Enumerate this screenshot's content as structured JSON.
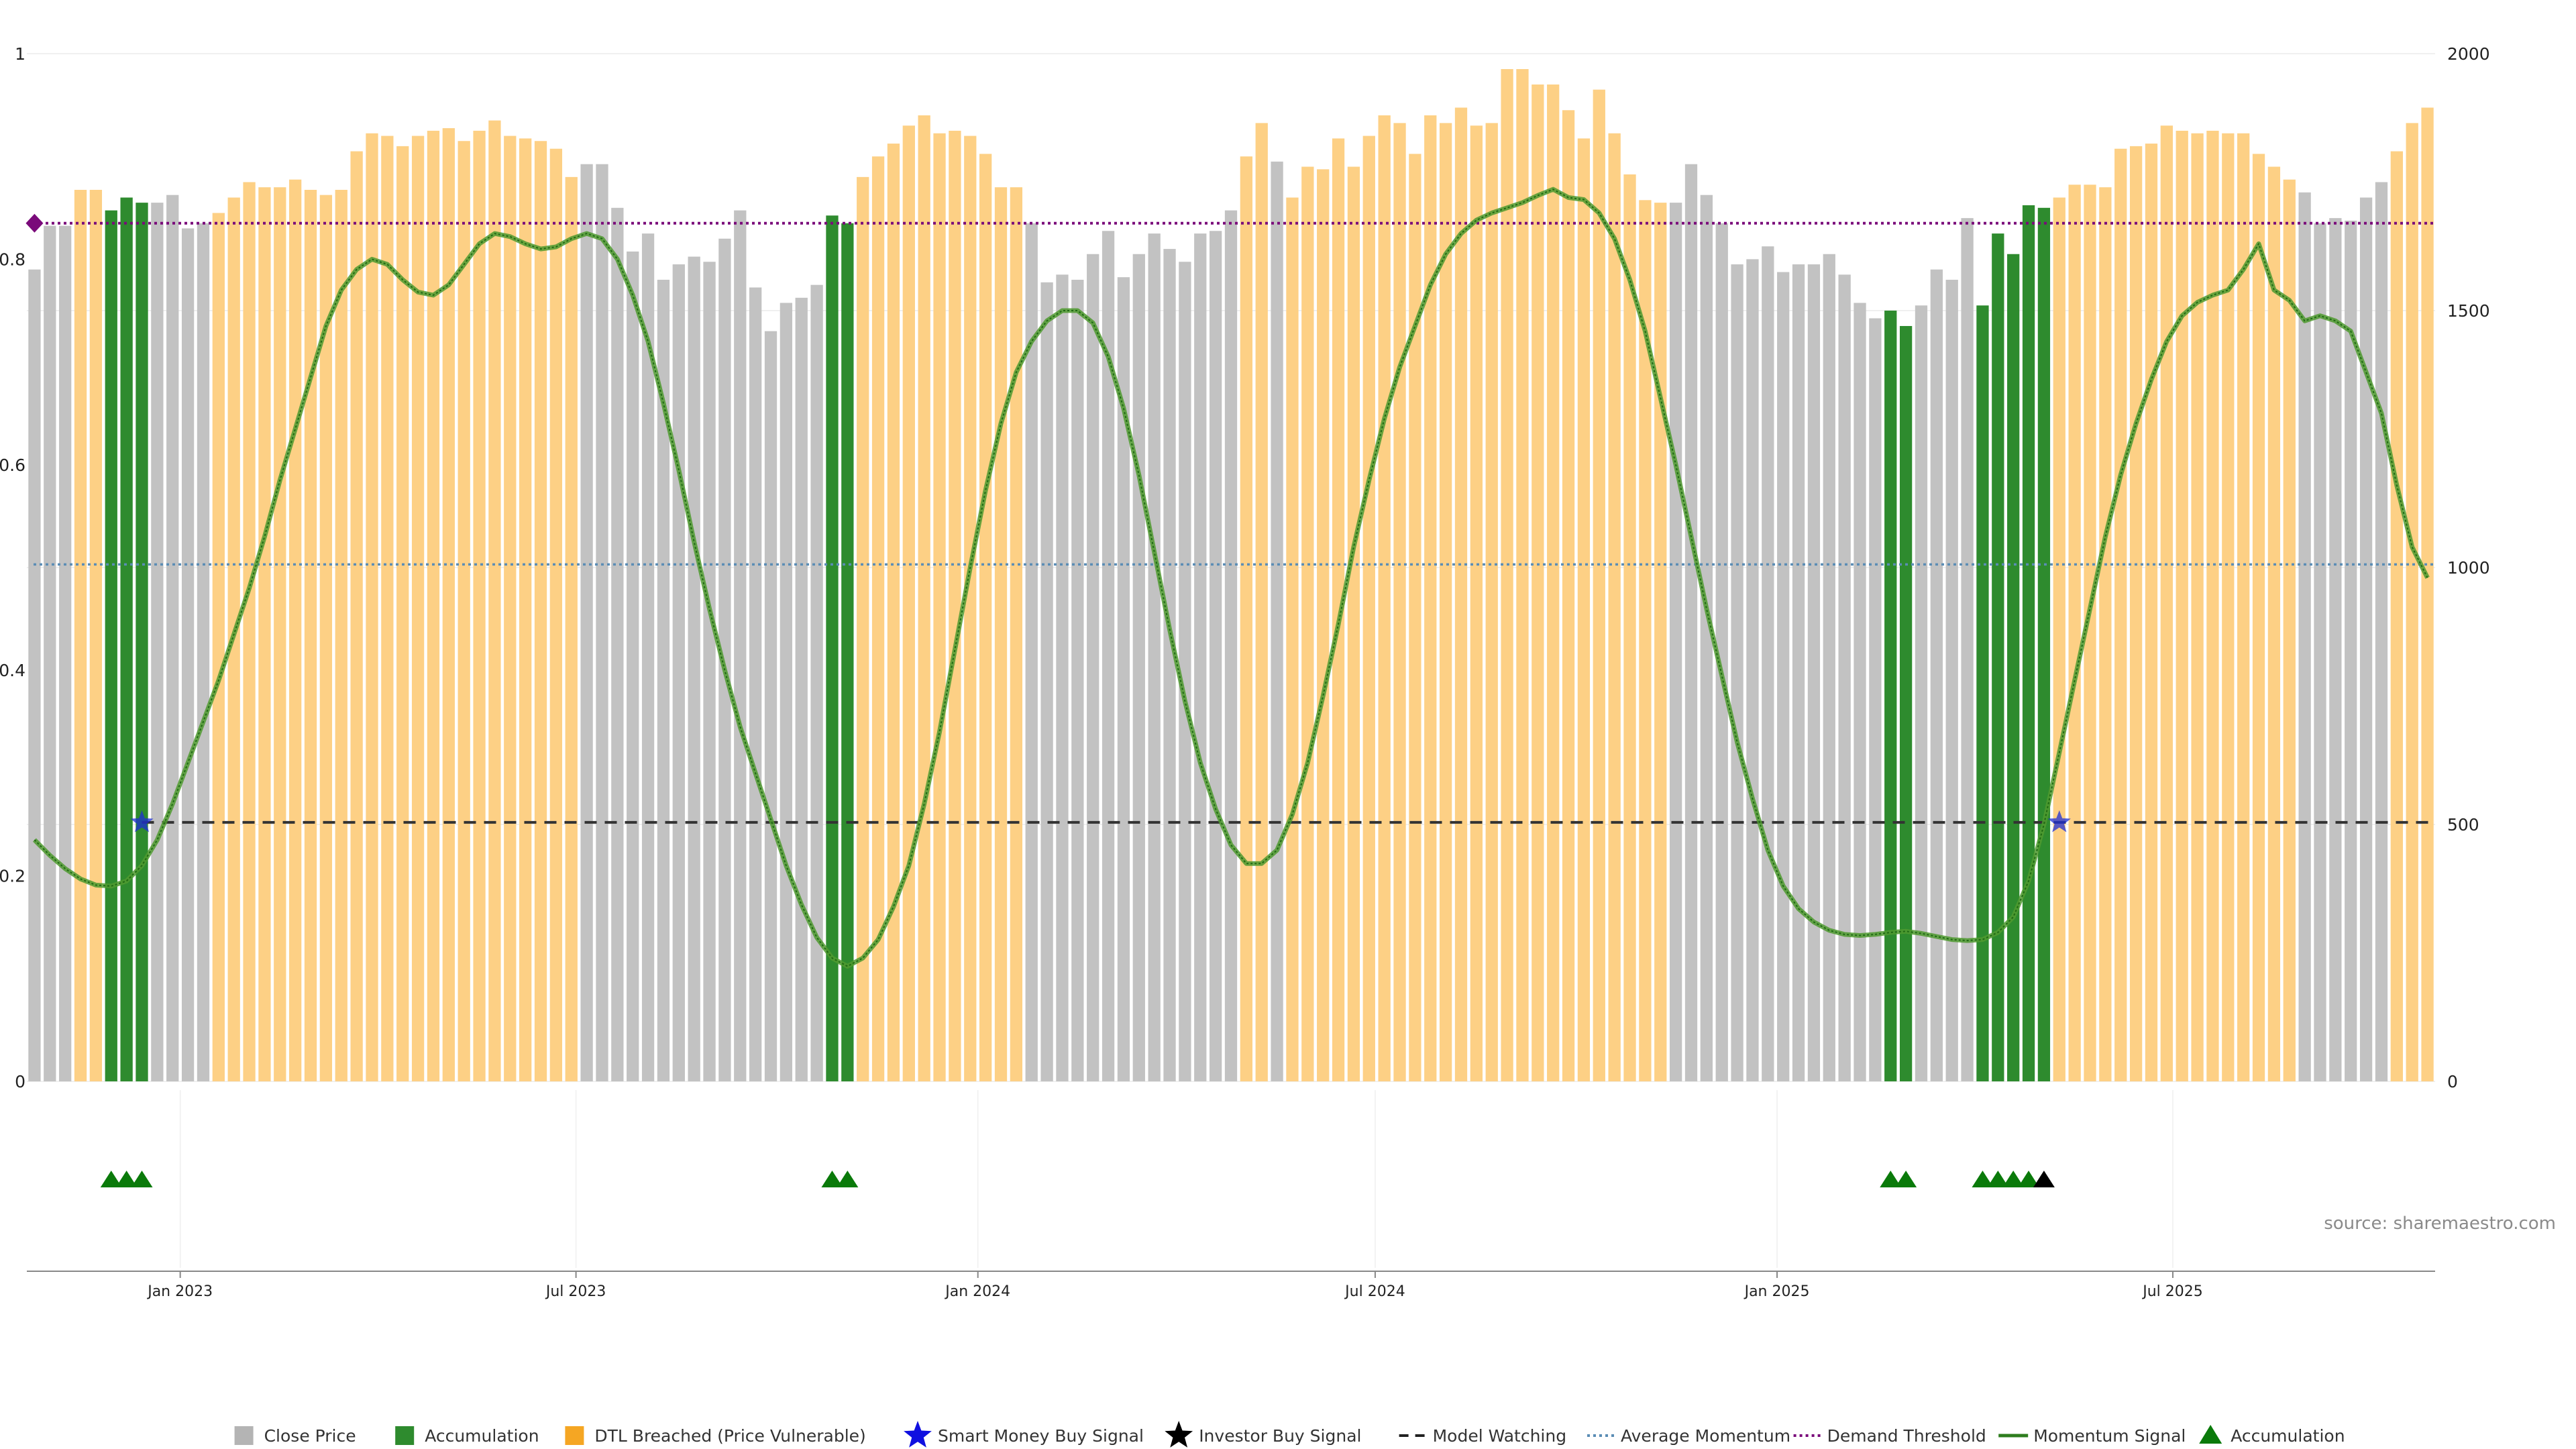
{
  "chart_data": {
    "type": "bar",
    "source_text": "source: sharemaestro.com",
    "left_axis": {
      "min": 0,
      "max": 1,
      "ticks": [
        "0",
        "0.2",
        "0.4",
        "0.6",
        "0.8",
        "1"
      ]
    },
    "right_axis": {
      "min": 0,
      "max": 2000,
      "ticks": [
        "0",
        "500",
        "1000",
        "1500",
        "2000"
      ]
    },
    "x_ticks": [
      {
        "label": "Jan 2023",
        "index": 9.5
      },
      {
        "label": "Jul 2023",
        "index": 35.3
      },
      {
        "label": "Jan 2024",
        "index": 61.5
      },
      {
        "label": "Jul 2024",
        "index": 87.4
      },
      {
        "label": "Jan 2025",
        "index": 113.6
      },
      {
        "label": "Jul 2025",
        "index": 139.4
      }
    ],
    "colors": {
      "close": "#c2c2c2",
      "accumulation": "#2e8b2e",
      "dtl": "#fdd085",
      "smart_money": "#1f2fd6",
      "investor": "#000000",
      "model_watching": "#333333",
      "average_momentum": "#5b8db5",
      "demand_threshold": "#7a0a7a",
      "momentum": "#3a8a2a",
      "marker_green": "#0a7a0a"
    },
    "legend": [
      {
        "label": "Close Price",
        "kind": "square",
        "color": "#b4b4b4"
      },
      {
        "label": "Accumulation",
        "kind": "square",
        "color": "#2e8b2e"
      },
      {
        "label": "DTL Breached (Price Vulnerable)",
        "kind": "square",
        "color": "#f5a623"
      },
      {
        "label": "Smart Money Buy Signal",
        "kind": "star",
        "color": "#1010e0"
      },
      {
        "label": "Investor Buy Signal",
        "kind": "star",
        "color": "#000000"
      },
      {
        "label": "Model Watching",
        "kind": "dash",
        "color": "#222222"
      },
      {
        "label": "Average Momentum",
        "kind": "dot",
        "color": "#5b8db5"
      },
      {
        "label": "Demand Threshold",
        "kind": "dot",
        "color": "#7a0a7a"
      },
      {
        "label": "Momentum Signal",
        "kind": "line",
        "color": "#2e7d1e"
      },
      {
        "label": "Accumulation",
        "kind": "triangle",
        "color": "#0a7a0a"
      }
    ],
    "series": [
      {
        "name": "Close Price",
        "axis": "right",
        "values": [
          1580,
          1665,
          1665,
          1735,
          1735,
          1695,
          1720,
          1710,
          1710,
          1725,
          1660,
          1670,
          1690,
          1720,
          1750,
          1740,
          1740,
          1755,
          1735,
          1725,
          1735,
          1810,
          1845,
          1840,
          1820,
          1840,
          1850,
          1855,
          1830,
          1850,
          1870,
          1840,
          1835,
          1830,
          1815,
          1760,
          1785,
          1785,
          1700,
          1615,
          1650,
          1560,
          1590,
          1605,
          1595,
          1640,
          1695,
          1545,
          1460,
          1515,
          1525,
          1550,
          1685,
          1670,
          1760,
          1800,
          1825,
          1860,
          1880,
          1845,
          1850,
          1840,
          1805,
          1740,
          1740,
          1670,
          1555,
          1570,
          1560,
          1610,
          1655,
          1565,
          1610,
          1650,
          1620,
          1595,
          1650,
          1655,
          1695,
          1800,
          1865,
          1790,
          1720,
          1780,
          1775,
          1835,
          1780,
          1840,
          1880,
          1865,
          1805,
          1880,
          1865,
          1895,
          1860,
          1865,
          1970,
          1970,
          1940,
          1940,
          1890,
          1835,
          1930,
          1845,
          1765,
          1715,
          1710,
          1710,
          1785,
          1725,
          1670,
          1590,
          1600,
          1625,
          1575,
          1590,
          1590,
          1610,
          1570,
          1515,
          1485,
          1500,
          1470,
          1510,
          1580,
          1560,
          1680,
          1510,
          1650,
          1610,
          1705,
          1700,
          1720,
          1745,
          1745,
          1740,
          1815,
          1820,
          1825,
          1860,
          1850,
          1845,
          1850,
          1845,
          1845,
          1805,
          1780,
          1755,
          1730,
          1670,
          1680,
          1675,
          1720,
          1750,
          1810,
          1865,
          1895
        ]
      },
      {
        "name": "Momentum Signal",
        "axis": "left",
        "values": [
          0.235,
          0.22,
          0.207,
          0.197,
          0.191,
          0.19,
          0.195,
          0.21,
          0.235,
          0.27,
          0.31,
          0.35,
          0.39,
          0.435,
          0.48,
          0.53,
          0.585,
          0.635,
          0.685,
          0.735,
          0.77,
          0.79,
          0.8,
          0.795,
          0.78,
          0.768,
          0.765,
          0.775,
          0.795,
          0.815,
          0.825,
          0.822,
          0.815,
          0.81,
          0.812,
          0.82,
          0.825,
          0.82,
          0.8,
          0.765,
          0.72,
          0.66,
          0.595,
          0.525,
          0.46,
          0.4,
          0.345,
          0.3,
          0.255,
          0.21,
          0.172,
          0.14,
          0.12,
          0.112,
          0.12,
          0.138,
          0.17,
          0.21,
          0.27,
          0.34,
          0.42,
          0.5,
          0.575,
          0.64,
          0.69,
          0.72,
          0.74,
          0.75,
          0.75,
          0.738,
          0.705,
          0.655,
          0.59,
          0.515,
          0.44,
          0.37,
          0.31,
          0.265,
          0.23,
          0.212,
          0.212,
          0.225,
          0.26,
          0.31,
          0.375,
          0.445,
          0.52,
          0.585,
          0.645,
          0.695,
          0.735,
          0.775,
          0.805,
          0.825,
          0.838,
          0.845,
          0.85,
          0.855,
          0.862,
          0.868,
          0.86,
          0.858,
          0.845,
          0.82,
          0.78,
          0.73,
          0.665,
          0.6,
          0.53,
          0.46,
          0.395,
          0.33,
          0.275,
          0.225,
          0.19,
          0.168,
          0.155,
          0.147,
          0.143,
          0.142,
          0.143,
          0.145,
          0.146,
          0.144,
          0.141,
          0.138,
          0.137,
          0.138,
          0.145,
          0.16,
          0.195,
          0.25,
          0.32,
          0.39,
          0.46,
          0.53,
          0.59,
          0.64,
          0.683,
          0.72,
          0.745,
          0.758,
          0.765,
          0.77,
          0.79,
          0.815,
          0.77,
          0.76,
          0.74,
          0.745,
          0.74,
          0.73,
          0.69,
          0.65,
          0.58,
          0.52,
          0.49
        ]
      },
      {
        "name": "Demand Threshold",
        "axis": "left",
        "value": 0.835
      },
      {
        "name": "Average Momentum",
        "axis": "left",
        "value": 0.503
      },
      {
        "name": "Model Watching",
        "axis": "left",
        "value": 0.252
      }
    ],
    "accumulation_indices": [
      5,
      6,
      7,
      52,
      53,
      121,
      122,
      127,
      128,
      129,
      130,
      131
    ],
    "dtl_ranges": [
      [
        3,
        4
      ],
      [
        12,
        35
      ],
      [
        54,
        64
      ],
      [
        79,
        80
      ],
      [
        82,
        106
      ],
      [
        132,
        147
      ],
      [
        154,
        156
      ]
    ],
    "smart_money_signals": [
      {
        "index": 7,
        "value": 0.252
      },
      {
        "index": 132,
        "value": 0.252
      }
    ],
    "demand_marker": {
      "index": 0,
      "value": 0.835
    },
    "accumulation_markers": [
      5,
      6,
      7,
      52,
      53,
      121,
      122,
      127,
      128,
      129,
      130
    ],
    "investor_markers": [
      131
    ]
  }
}
